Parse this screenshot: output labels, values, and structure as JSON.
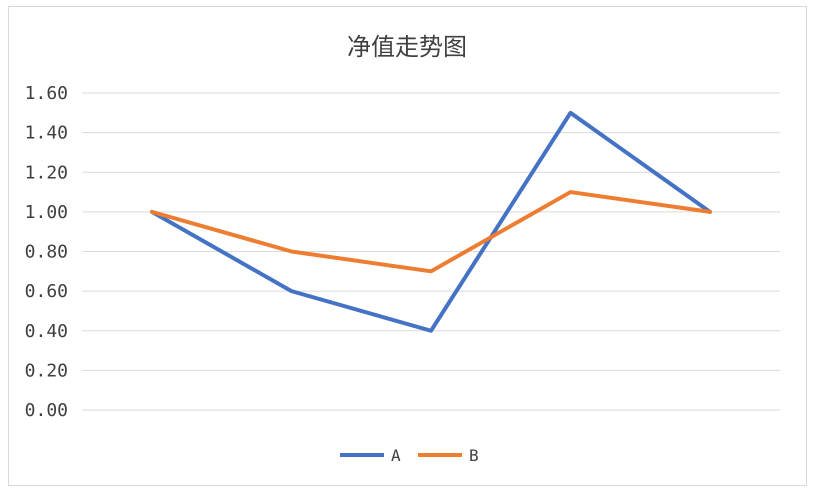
{
  "chart_data": {
    "type": "line",
    "title": "净值走势图",
    "xlabel": "",
    "ylabel": "",
    "categories": [
      "",
      "",
      "",
      "",
      ""
    ],
    "ylim": [
      0,
      1.6
    ],
    "yticks": [
      "0.00",
      "0.20",
      "0.40",
      "0.60",
      "0.80",
      "1.00",
      "1.20",
      "1.40",
      "1.60"
    ],
    "grid": true,
    "legend_position": "bottom",
    "series": [
      {
        "name": "A",
        "color": "#4472c4",
        "values": [
          1.0,
          0.6,
          0.4,
          1.5,
          1.0
        ]
      },
      {
        "name": "B",
        "color": "#ed7d31",
        "values": [
          1.0,
          0.8,
          0.7,
          1.1,
          1.0
        ]
      }
    ]
  }
}
